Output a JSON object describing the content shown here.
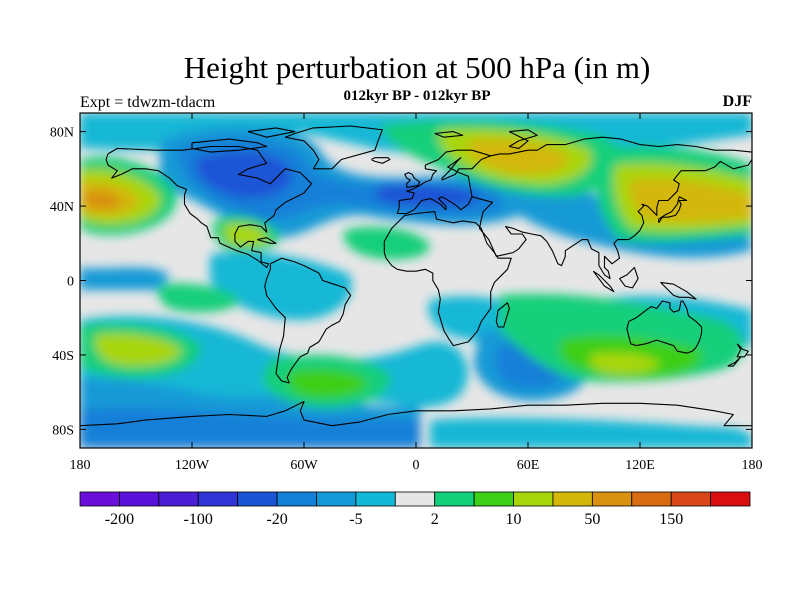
{
  "title": "Height perturbation at 500 hPa (in m)",
  "subtitle": "012kyr BP - 012kyr BP",
  "left_label": "Expt = tdwzm-tdacm",
  "right_label": "DJF",
  "map": {
    "lon_range": [
      -180,
      180
    ],
    "lat_range": [
      -90,
      90
    ],
    "x_ticks": [
      {
        "lon": -180,
        "label": "180"
      },
      {
        "lon": -120,
        "label": "120W"
      },
      {
        "lon": -60,
        "label": "60W"
      },
      {
        "lon": 0,
        "label": "0"
      },
      {
        "lon": 60,
        "label": "60E"
      },
      {
        "lon": 120,
        "label": "120E"
      },
      {
        "lon": 180,
        "label": "180"
      }
    ],
    "y_ticks": [
      {
        "lat": 80,
        "label": "80N"
      },
      {
        "lat": 40,
        "label": "40N"
      },
      {
        "lat": 0,
        "label": "0"
      },
      {
        "lat": -40,
        "label": "40S"
      },
      {
        "lat": -80,
        "label": "80S"
      }
    ]
  },
  "colorbar": {
    "colors": [
      "#6a0fd9",
      "#5a12d8",
      "#4a1fd6",
      "#2e34d6",
      "#1a55d6",
      "#1580d8",
      "#139ad6",
      "#12b8d6",
      "#e6e6e6",
      "#13cf7a",
      "#3ecf18",
      "#a8d60c",
      "#d3b70a",
      "#d99110",
      "#d96c10",
      "#d9461a",
      "#d90e10"
    ],
    "labels": [
      {
        "boundary": 1,
        "text": "-200"
      },
      {
        "boundary": 3,
        "text": "-100"
      },
      {
        "boundary": 5,
        "text": "-20"
      },
      {
        "boundary": 7,
        "text": "-5"
      },
      {
        "boundary": 9,
        "text": "2"
      },
      {
        "boundary": 11,
        "text": "10"
      },
      {
        "boundary": 13,
        "text": "50"
      },
      {
        "boundary": 15,
        "text": "150"
      }
    ]
  },
  "colors": {
    "c_neg_strong": "#1a55d6",
    "c_neg_mid": "#1580d8",
    "c_neg_weak": "#139ad6",
    "c_neg_light": "#12b8d6",
    "c_neutral": "#e6e6e6",
    "c_pos_light": "#13cf7a",
    "c_pos_weak": "#3ecf18",
    "c_pos_mid": "#a8d60c",
    "c_pos_strong": "#d3b70a",
    "c_pos_max": "#d99110"
  }
}
